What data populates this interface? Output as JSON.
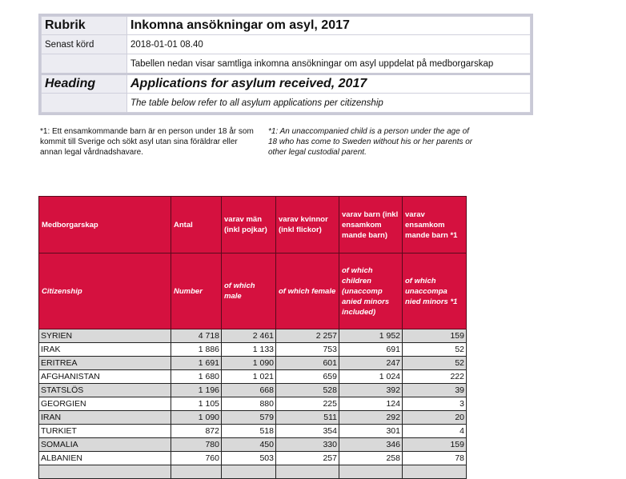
{
  "meta": {
    "rubrik_label": "Rubrik",
    "rubrik_value": "Inkomna ansökningar om asyl, 2017",
    "senast_label": "Senast körd",
    "senast_value": "2018-01-01 08.40",
    "description_sv": "Tabellen nedan visar samtliga inkomna ansökningar om asyl uppdelat på medborgarskap",
    "heading_label": "Heading",
    "heading_value": "Applications for asylum received, 2017",
    "description_en": "The table below refer to all asylum applications per citizenship"
  },
  "notes": {
    "sv": "*1: Ett ensamkommande barn är en person under 18 år som kommit till Sverige och sökt asyl utan sina föräldrar eller annan legal vårdnadshavare.",
    "en": "*1: An unaccompanied child is a person under the age of 18 who has come to Sweden without his or her parents or other legal custodial parent."
  },
  "table": {
    "headers_sv": [
      "Medborgarskap",
      "Antal",
      "varav män (inkl pojkar)",
      "varav kvinnor (inkl flickor)",
      "varav barn (inkl ensamkom mande barn)",
      "varav ensamkom mande barn *1"
    ],
    "headers_en": [
      "Citizenship",
      "Number",
      "of which male",
      "of which female",
      "of which children (unaccomp anied minors included)",
      "of which unaccompa nied minors *1"
    ],
    "header_color": "#d5113f",
    "rows": [
      [
        "SYRIEN",
        "4 718",
        "2 461",
        "2 257",
        "1 952",
        "159"
      ],
      [
        "IRAK",
        "1 886",
        "1 133",
        "753",
        "691",
        "52"
      ],
      [
        "ERITREA",
        "1 691",
        "1 090",
        "601",
        "247",
        "52"
      ],
      [
        "AFGHANISTAN",
        "1 680",
        "1 021",
        "659",
        "1 024",
        "222"
      ],
      [
        "STATSLÖS",
        "1 196",
        "668",
        "528",
        "392",
        "39"
      ],
      [
        "GEORGIEN",
        "1 105",
        "880",
        "225",
        "124",
        "3"
      ],
      [
        "IRAN",
        "1 090",
        "579",
        "511",
        "292",
        "20"
      ],
      [
        "TURKIET",
        "872",
        "518",
        "354",
        "301",
        "4"
      ],
      [
        "SOMALIA",
        "780",
        "450",
        "330",
        "346",
        "159"
      ],
      [
        "ALBANIEN",
        "760",
        "503",
        "257",
        "258",
        "78"
      ]
    ]
  }
}
